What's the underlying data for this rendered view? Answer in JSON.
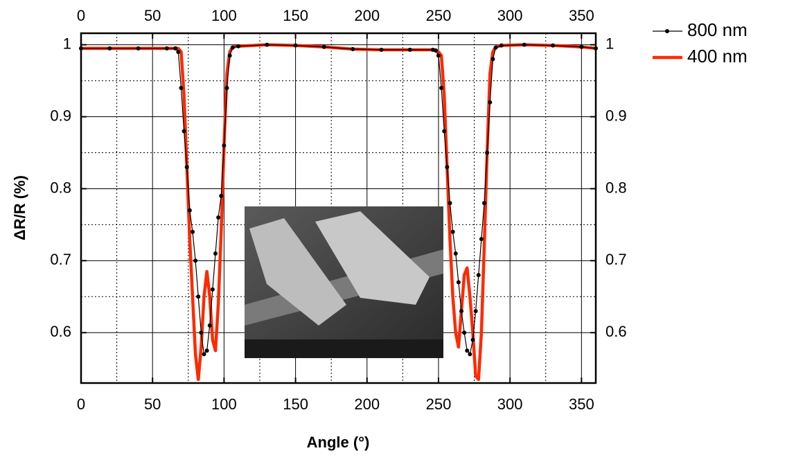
{
  "chart_data": {
    "type": "line",
    "x_label": "Angle (°)",
    "y_label": "ΔR/R (%)",
    "x": [
      0,
      20,
      40,
      60,
      66,
      68,
      70,
      72,
      74,
      76,
      78,
      80,
      82,
      84,
      86,
      88,
      90,
      92,
      94,
      96,
      98,
      100,
      102,
      104,
      106,
      110,
      130,
      150,
      170,
      190,
      210,
      230,
      246,
      248,
      250,
      252,
      254,
      256,
      258,
      260,
      262,
      264,
      266,
      268,
      270,
      272,
      274,
      276,
      278,
      280,
      282,
      284,
      286,
      288,
      290,
      294,
      310,
      330,
      350,
      360
    ],
    "series": [
      {
        "name": "800 nm",
        "color": "#000000",
        "values": [
          0.995,
          0.995,
          0.995,
          0.995,
          0.995,
          0.99,
          0.94,
          0.88,
          0.83,
          0.77,
          0.74,
          0.7,
          0.65,
          0.6,
          0.57,
          0.575,
          0.61,
          0.66,
          0.71,
          0.76,
          0.79,
          0.86,
          0.94,
          0.985,
          0.996,
          0.998,
          1.0,
          0.999,
          0.997,
          0.994,
          0.993,
          0.993,
          0.993,
          0.992,
          0.985,
          0.94,
          0.88,
          0.83,
          0.78,
          0.74,
          0.71,
          0.67,
          0.63,
          0.6,
          0.575,
          0.57,
          0.59,
          0.63,
          0.68,
          0.73,
          0.78,
          0.85,
          0.92,
          0.98,
          0.996,
          0.999,
          1.0,
          0.999,
          0.997,
          0.995
        ]
      },
      {
        "name": "400 nm",
        "color": "#ff2a00",
        "values": [
          0.995,
          0.995,
          0.995,
          0.995,
          0.995,
          0.995,
          0.99,
          0.93,
          0.83,
          0.73,
          0.65,
          0.57,
          0.535,
          0.58,
          0.65,
          0.685,
          0.65,
          0.59,
          0.575,
          0.64,
          0.74,
          0.86,
          0.96,
          0.99,
          0.997,
          0.998,
          1.0,
          0.999,
          0.997,
          0.994,
          0.993,
          0.993,
          0.993,
          0.993,
          0.99,
          0.985,
          0.93,
          0.83,
          0.73,
          0.65,
          0.6,
          0.58,
          0.63,
          0.68,
          0.69,
          0.65,
          0.6,
          0.54,
          0.535,
          0.6,
          0.72,
          0.85,
          0.96,
          0.99,
          0.997,
          0.999,
          1.0,
          0.999,
          0.997,
          0.995
        ]
      }
    ],
    "xlim": [
      0,
      360
    ],
    "ylim": [
      0.53,
      1.016
    ],
    "xticks": [
      0,
      50,
      100,
      150,
      200,
      250,
      300,
      350
    ],
    "yticks": [
      0.6,
      0.7,
      0.8,
      0.9,
      1
    ],
    "x_minor_ticks": [
      25,
      75,
      125,
      175,
      225,
      275,
      325
    ],
    "y_minor_ticks": [
      0.65,
      0.75,
      0.85,
      0.95
    ],
    "grid": true,
    "legend": "outside-top-right"
  }
}
